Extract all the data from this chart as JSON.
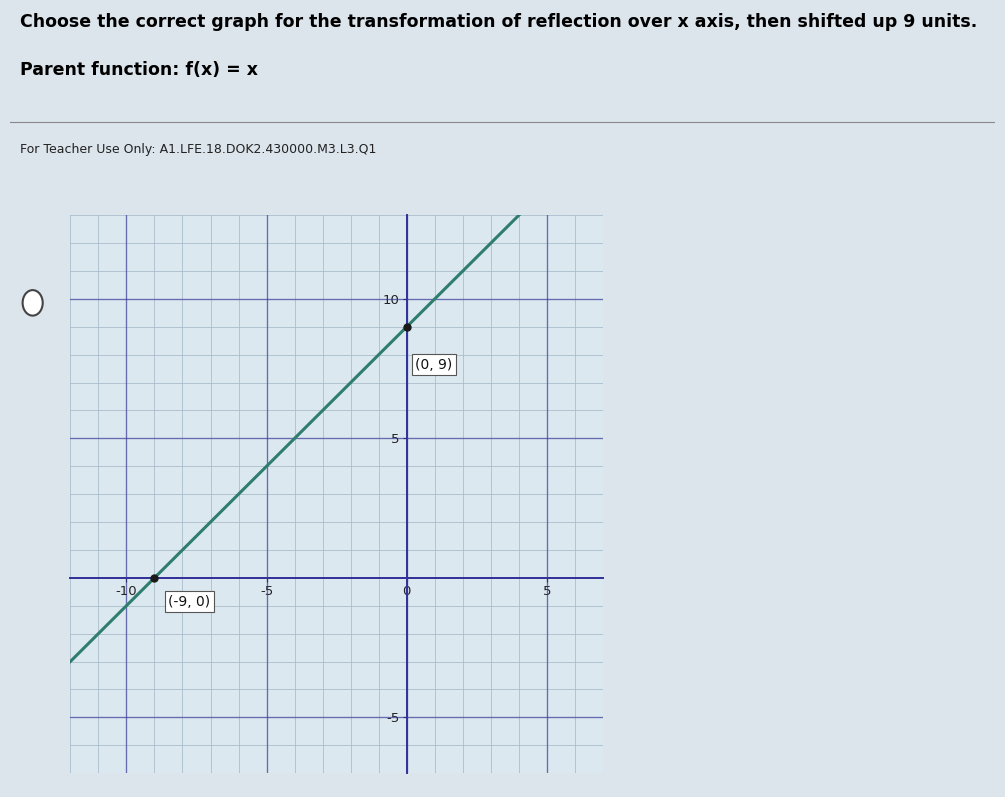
{
  "title_line1": "Choose the correct graph for the transformation of reflection over x axis, then shifted up 9 units.",
  "title_line2": "Parent function: f(x) = x",
  "teacher_note": "For Teacher Use Only: A1.LFE.18.DOK2.430000.M3.L3.Q1",
  "xlim": [
    -12,
    7
  ],
  "ylim": [
    -7,
    13
  ],
  "xticks": [
    -10,
    -5,
    0,
    5
  ],
  "yticks": [
    -5,
    5,
    10
  ],
  "line_slope": 1,
  "line_intercept": 9,
  "line_color": "#2e7d6e",
  "line_width": 2.2,
  "point1": [
    -9,
    0
  ],
  "point2": [
    0,
    9
  ],
  "label1": "(-9, 0)",
  "label2": "(0, 9)",
  "point_color": "#1a1a1a",
  "point_size": 5,
  "bg_color": "#dce4ec",
  "plot_bg_color": "#dce8f0",
  "grid_color": "#aabccc",
  "grid_linewidth": 0.6,
  "axis_color": "#333399",
  "axis_linewidth": 1.4,
  "fig_width": 10.05,
  "fig_height": 7.97,
  "title_fontsize": 12.5,
  "teacher_fontsize": 9,
  "annotation_fontsize": 10
}
